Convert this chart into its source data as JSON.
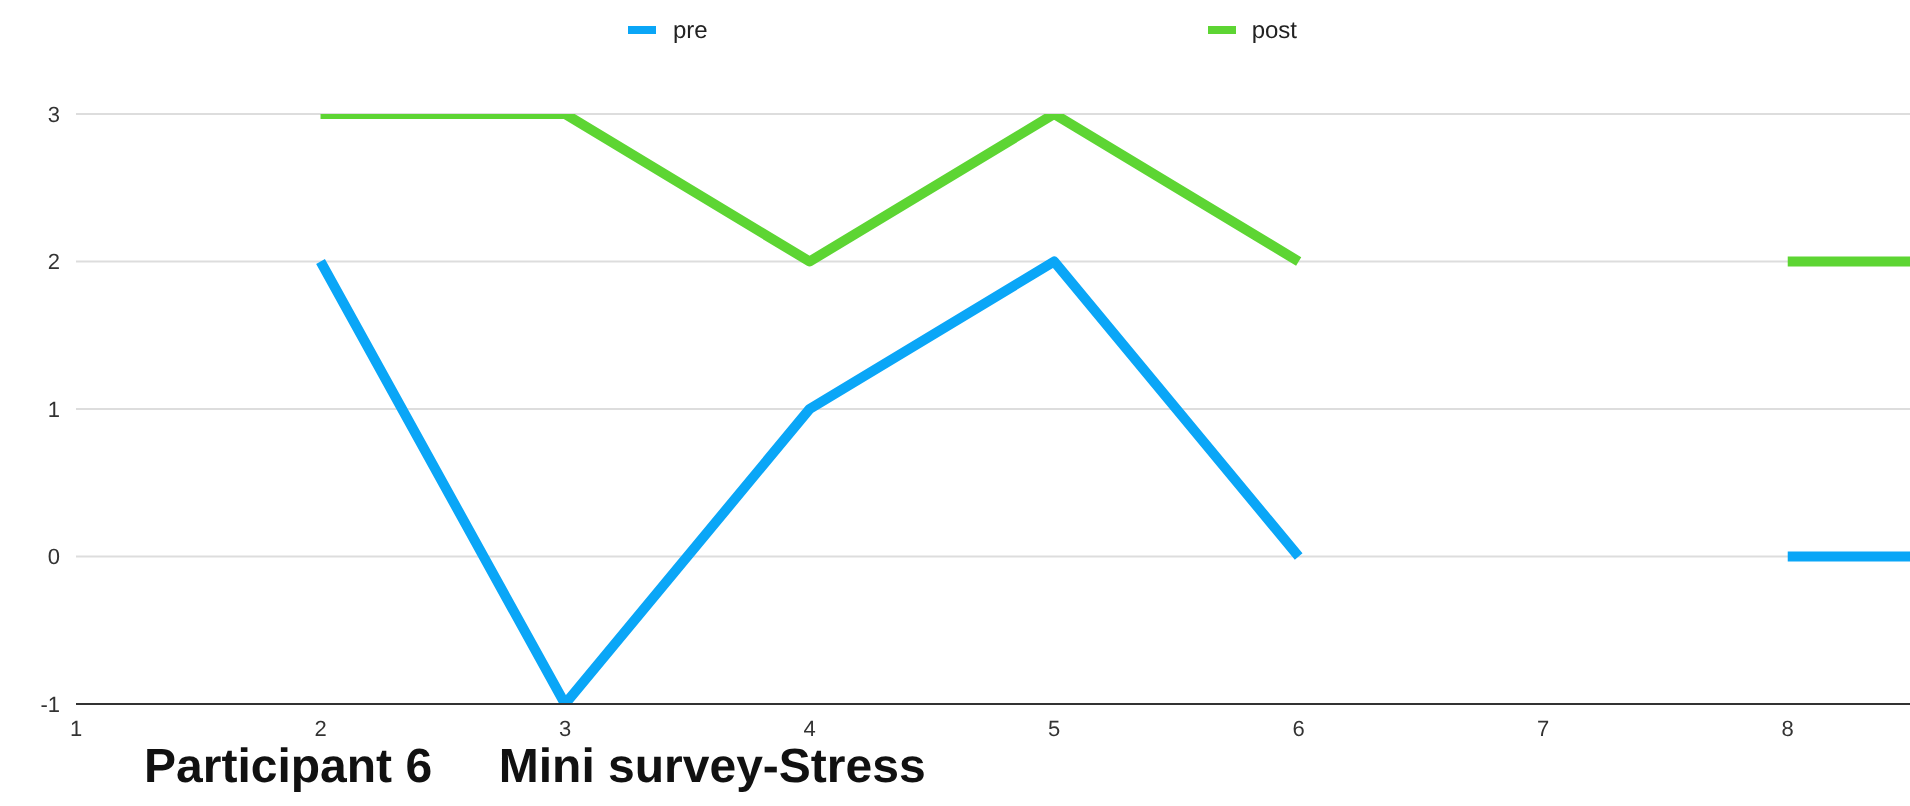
{
  "chart_data": {
    "type": "line",
    "title": "Participant 6     Mini survey-Stress",
    "x": [
      2,
      3,
      4,
      5,
      6,
      7,
      8,
      8.5
    ],
    "series": [
      {
        "name": "pre",
        "color": "#0aa6f7",
        "values": [
          2,
          -1,
          1,
          2,
          0,
          null,
          0,
          0
        ]
      },
      {
        "name": "post",
        "color": "#5dd533",
        "values": [
          3,
          3,
          2,
          3,
          2,
          null,
          2,
          2
        ]
      }
    ],
    "xlim": [
      1,
      8.5
    ],
    "xticks": [
      1,
      2,
      3,
      4,
      5,
      6,
      7,
      8
    ],
    "ylim": [
      -1,
      3
    ],
    "yticks": [
      -1,
      0,
      1,
      2,
      3
    ],
    "grid": "y",
    "legend": "top",
    "marker": "none",
    "line_style": "solid"
  }
}
